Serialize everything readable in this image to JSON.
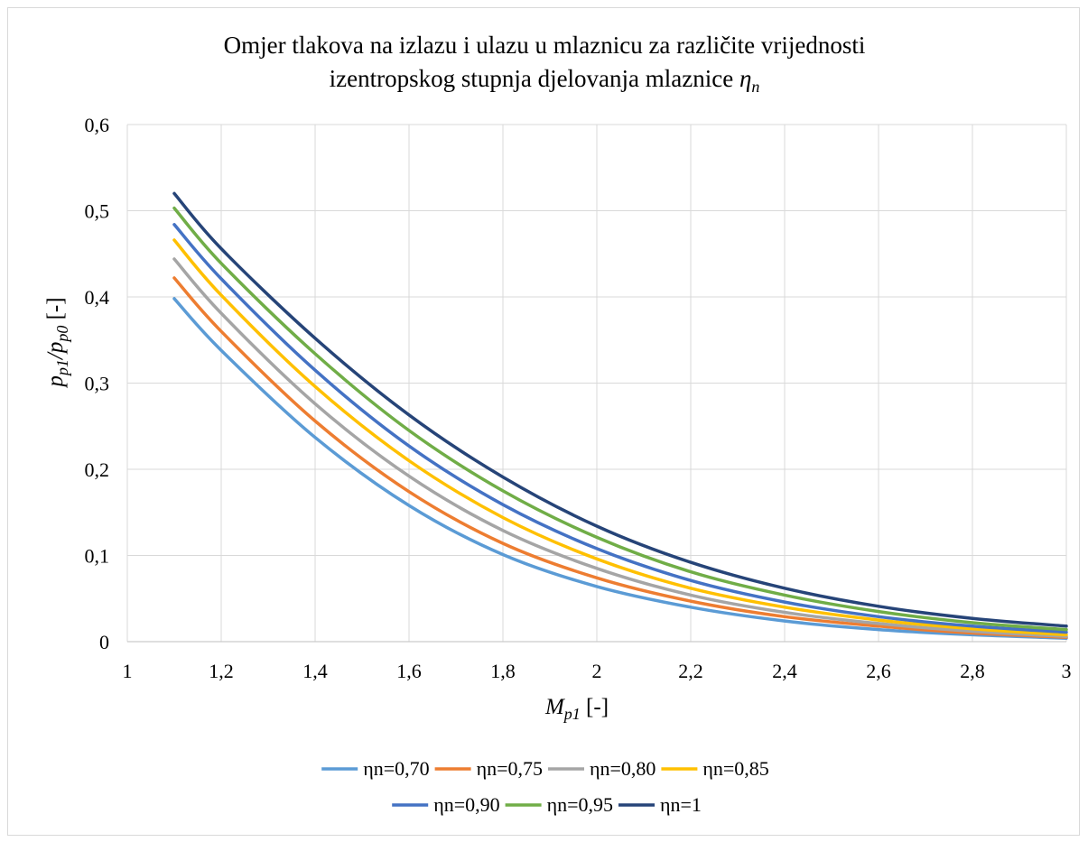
{
  "chart_data": {
    "type": "line",
    "title_line1": "Omjer tlakova na izlazu i ulazu u mlaznicu za različite vrijednosti",
    "title_line2_text": "izentropskog stupnja djelovanja mlaznice ",
    "title_line2_symbol": "η",
    "title_line2_sub": "n",
    "xlabel_main": "M",
    "xlabel_sub": "p1",
    "xlabel_unit": " [-]",
    "ylabel_p1": "p",
    "ylabel_sub1": "p1",
    "ylabel_slash": "/p",
    "ylabel_sub2": "p0",
    "ylabel_unit": " [-]",
    "xlim": [
      1,
      3
    ],
    "ylim": [
      0,
      0.6
    ],
    "x_ticks": [
      "1",
      "1,2",
      "1,4",
      "1,6",
      "1,8",
      "2",
      "2,2",
      "2,4",
      "2,6",
      "2,8",
      "3"
    ],
    "y_ticks": [
      "0",
      "0,1",
      "0,2",
      "0,3",
      "0,4",
      "0,5",
      "0,6"
    ],
    "grid": true,
    "legend_position": "bottom",
    "x": [
      1.1,
      1.2,
      1.4,
      1.6,
      1.8,
      2.0,
      2.2,
      2.4,
      2.6,
      2.8,
      3.0
    ],
    "series": [
      {
        "name": "ηn=0,70",
        "color": "#5B9BD5",
        "values": [
          0.398,
          0.338,
          0.237,
          0.158,
          0.101,
          0.064,
          0.04,
          0.024,
          0.014,
          0.008,
          0.004
        ]
      },
      {
        "name": "ηn=0,75",
        "color": "#ED7D31",
        "values": [
          0.422,
          0.36,
          0.256,
          0.174,
          0.114,
          0.074,
          0.047,
          0.029,
          0.018,
          0.01,
          0.005
        ]
      },
      {
        "name": "ηn=0,80",
        "color": "#A5A5A5",
        "values": [
          0.444,
          0.381,
          0.276,
          0.192,
          0.129,
          0.085,
          0.054,
          0.034,
          0.021,
          0.012,
          0.006
        ]
      },
      {
        "name": "ηn=0,85",
        "color": "#FFC000",
        "values": [
          0.466,
          0.402,
          0.296,
          0.21,
          0.144,
          0.096,
          0.062,
          0.04,
          0.025,
          0.015,
          0.008
        ]
      },
      {
        "name": "ηn=0,90",
        "color": "#4472C4",
        "values": [
          0.484,
          0.421,
          0.315,
          0.227,
          0.159,
          0.108,
          0.071,
          0.046,
          0.029,
          0.018,
          0.011
        ]
      },
      {
        "name": "ηn=0,95",
        "color": "#70AD47",
        "values": [
          0.503,
          0.439,
          0.334,
          0.245,
          0.175,
          0.121,
          0.081,
          0.054,
          0.035,
          0.022,
          0.014
        ]
      },
      {
        "name": "ηn=1",
        "color": "#264478",
        "values": [
          0.52,
          0.456,
          0.352,
          0.263,
          0.191,
          0.134,
          0.092,
          0.062,
          0.041,
          0.027,
          0.018
        ]
      }
    ]
  }
}
